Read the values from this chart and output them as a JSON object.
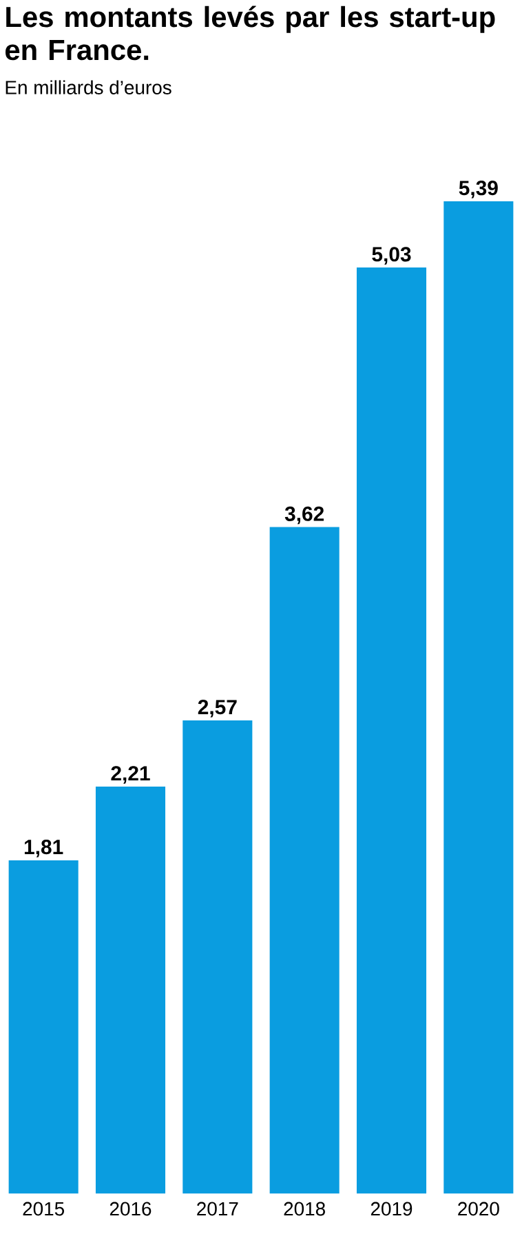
{
  "chart_data": {
    "type": "bar",
    "title": "Les montants levés par les start-up en France.",
    "subtitle": "En milliards d’euros",
    "categories": [
      "2015",
      "2016",
      "2017",
      "2018",
      "2019",
      "2020"
    ],
    "values": [
      1.81,
      2.21,
      2.57,
      3.62,
      5.03,
      5.39
    ],
    "value_labels": [
      "1,81",
      "2,21",
      "2,57",
      "3,62",
      "5,03",
      "5,39"
    ],
    "color": "#0a9de0"
  }
}
